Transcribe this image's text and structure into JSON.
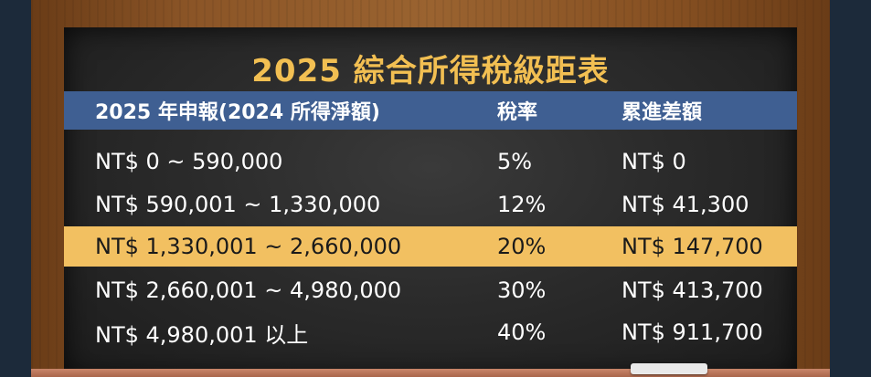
{
  "title": "2025 綜合所得稅級距表",
  "columns": {
    "bracket": "2025 年申報(2024 所得淨額)",
    "rate": "稅率",
    "deduction": "累進差額"
  },
  "rows": [
    {
      "bracket": "NT$ 0 ~ 590,000",
      "rate": "5%",
      "deduction": "NT$ 0",
      "highlighted": false
    },
    {
      "bracket": "NT$ 590,001 ~ 1,330,000",
      "rate": "12%",
      "deduction": "NT$ 41,300",
      "highlighted": false
    },
    {
      "bracket": "NT$ 1,330,001 ~ 2,660,000",
      "rate": "20%",
      "deduction": "NT$ 147,700",
      "highlighted": true
    },
    {
      "bracket": "NT$ 2,660,001 ~ 4,980,000",
      "rate": "30%",
      "deduction": "NT$ 413,700",
      "highlighted": false
    },
    {
      "bracket": "NT$ 4,980,001 以上",
      "rate": "40%",
      "deduction": "NT$ 911,700",
      "highlighted": false
    }
  ],
  "colors": {
    "title": "#f2bf52",
    "header_bg": "#3f5f92",
    "highlight_bg": "#f2c061",
    "board_bg": "#2b2b2b",
    "frame": "#8b5527"
  }
}
